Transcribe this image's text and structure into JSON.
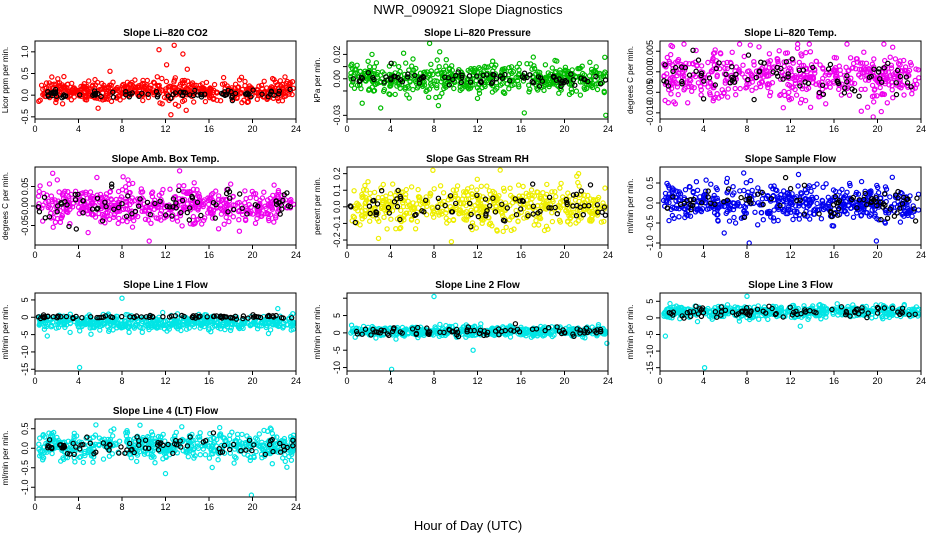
{
  "figure": {
    "title": "NWR_090921  Slope Diagnostics",
    "xlabel": "Hour of Day (UTC)"
  },
  "chart_data": [
    {
      "type": "scatter",
      "title": "Slope Li–820 CO2",
      "ylabel": "Licor ppm per min.",
      "xlim": [
        0,
        24
      ],
      "x_ticks": [
        0,
        4,
        8,
        12,
        16,
        20,
        24
      ],
      "ylim": [
        -0.55,
        1.25
      ],
      "y_ticks": [
        -0.5,
        0.0,
        0.5,
        1.0
      ],
      "y_tick_labels": [
        "-0.5",
        "0.0",
        "0.5",
        "1.0"
      ],
      "series": [
        {
          "color": "#ff0000",
          "center": 0.1,
          "spread": 0.12,
          "count": 520,
          "outliers": [
            [
              12.8,
              1.15
            ],
            [
              11.4,
              1.05
            ],
            [
              13.6,
              0.95
            ],
            [
              12.5,
              -0.45
            ],
            [
              13.2,
              -0.25
            ],
            [
              14.0,
              0.6
            ],
            [
              12.1,
              0.7
            ],
            [
              11.7,
              -0.2
            ],
            [
              13.9,
              -0.35
            ],
            [
              12.9,
              0.4
            ],
            [
              6.9,
              0.55
            ],
            [
              5.8,
              -0.3
            ]
          ]
        },
        {
          "color": "#000000",
          "center": 0.02,
          "spread": 0.05,
          "count": 85,
          "outliers": []
        }
      ]
    },
    {
      "type": "scatter",
      "title": "Slope Li–820 Pressure",
      "ylabel": "kPa per min.",
      "xlim": [
        0,
        24
      ],
      "x_ticks": [
        0,
        4,
        8,
        12,
        16,
        20,
        24
      ],
      "ylim": [
        -0.033,
        0.031
      ],
      "y_ticks": [
        -0.03,
        -0.01,
        0.0,
        0.01,
        0.02
      ],
      "y_tick_labels": [
        "-0.03",
        "",
        "0.00",
        "",
        "0.02"
      ],
      "series": [
        {
          "color": "#00bb00",
          "center": 0.0,
          "spread": 0.006,
          "count": 520,
          "outliers": [
            [
              7.6,
              0.029
            ],
            [
              16.3,
              -0.028
            ],
            [
              2.3,
              0.02
            ],
            [
              3.1,
              -0.024
            ],
            [
              23.8,
              -0.03
            ],
            [
              5.2,
              0.021
            ],
            [
              1.4,
              -0.02
            ],
            [
              8.4,
              -0.022
            ]
          ]
        },
        {
          "color": "#000000",
          "center": 0.0,
          "spread": 0.003,
          "count": 85,
          "outliers": []
        }
      ]
    },
    {
      "type": "scatter",
      "title": "Slope Li–820 Temp.",
      "ylabel": "degrees C per min.",
      "xlim": [
        0,
        24
      ],
      "x_ticks": [
        0,
        4,
        8,
        12,
        16,
        20,
        24
      ],
      "ylim": [
        -0.0115,
        0.0075
      ],
      "y_ticks": [
        -0.01,
        -0.005,
        0.0,
        0.005
      ],
      "y_tick_labels": [
        "-0.010",
        "-0.005",
        "0.000",
        "0.005"
      ],
      "series": [
        {
          "color": "#ee00ee",
          "center": -0.001,
          "spread": 0.003,
          "count": 520,
          "outliers": [
            [
              19.6,
              -0.011
            ],
            [
              8.3,
              0.0065
            ],
            [
              21.4,
              0.006
            ]
          ]
        },
        {
          "color": "#000000",
          "center": -0.001,
          "spread": 0.0025,
          "count": 85,
          "outliers": []
        }
      ]
    },
    {
      "type": "scatter",
      "title": "Slope Amb. Box Temp.",
      "ylabel": "degrees C per min.",
      "xlim": [
        0,
        24
      ],
      "x_ticks": [
        0,
        4,
        8,
        12,
        16,
        20,
        24
      ],
      "ylim": [
        -0.1,
        0.1
      ],
      "y_ticks": [
        -0.05,
        0.0,
        0.05
      ],
      "y_tick_labels": [
        "-0.05",
        "0.00",
        "0.05"
      ],
      "series": [
        {
          "color": "#ee00ee",
          "center": 0.0,
          "spread": 0.025,
          "count": 520,
          "outliers": [
            [
              13.3,
              0.09
            ],
            [
              10.5,
              -0.09
            ],
            [
              8.1,
              0.075
            ]
          ]
        },
        {
          "color": "#000000",
          "center": 0.0,
          "spread": 0.02,
          "count": 85,
          "outliers": []
        }
      ]
    },
    {
      "type": "scatter",
      "title": "Slope Gas Stream RH",
      "ylabel": "percent per min.",
      "xlim": [
        0,
        24
      ],
      "x_ticks": [
        0,
        4,
        8,
        12,
        16,
        20,
        24
      ],
      "ylim": [
        -0.23,
        0.24
      ],
      "y_ticks": [
        -0.2,
        -0.1,
        0.0,
        0.1,
        0.2
      ],
      "y_tick_labels": [
        "-0.2",
        "-0.1",
        "0.0",
        "0.1",
        "0.2"
      ],
      "series": [
        {
          "color": "#eeee00",
          "center": 0.0,
          "spread": 0.06,
          "count": 520,
          "outliers": [
            [
              7.9,
              0.22
            ],
            [
              9.6,
              -0.21
            ],
            [
              21.3,
              0.2
            ],
            [
              2.9,
              -0.19
            ]
          ]
        },
        {
          "color": "#000000",
          "center": 0.0,
          "spread": 0.05,
          "count": 85,
          "outliers": []
        }
      ]
    },
    {
      "type": "scatter",
      "title": "Slope Sample Flow",
      "ylabel": "ml/min per min.",
      "xlim": [
        0,
        24
      ],
      "x_ticks": [
        0,
        4,
        8,
        12,
        16,
        20,
        24
      ],
      "ylim": [
        -1.05,
        0.9
      ],
      "y_ticks": [
        -1.0,
        -0.5,
        0.0,
        0.5
      ],
      "y_tick_labels": [
        "-1.0",
        "-0.5",
        "0.0",
        "0.5"
      ],
      "series": [
        {
          "color": "#0000ee",
          "center": 0.0,
          "spread": 0.22,
          "count": 520,
          "outliers": [
            [
              8.2,
              -1.0
            ],
            [
              19.9,
              -0.95
            ],
            [
              7.7,
              0.75
            ],
            [
              5.9,
              -0.75
            ]
          ]
        },
        {
          "color": "#000000",
          "center": 0.0,
          "spread": 0.2,
          "count": 85,
          "outliers": []
        }
      ]
    },
    {
      "type": "scatter",
      "title": "Slope Line 1 Flow",
      "ylabel": "ml/min per min.",
      "xlim": [
        0,
        24
      ],
      "x_ticks": [
        0,
        4,
        8,
        12,
        16,
        20,
        24
      ],
      "ylim": [
        -15.5,
        7
      ],
      "y_ticks": [
        -15,
        -10,
        -5,
        0,
        5
      ],
      "y_tick_labels": [
        "-15",
        "-10",
        "-5",
        "0",
        "5"
      ],
      "series": [
        {
          "color": "#00e5e5",
          "center": -1.6,
          "spread": 1.1,
          "count": 520,
          "outliers": [
            [
              8.0,
              5.5
            ],
            [
              4.1,
              -14.5
            ]
          ]
        },
        {
          "color": "#000000",
          "center": 0.1,
          "spread": 0.25,
          "count": 85,
          "outliers": []
        }
      ]
    },
    {
      "type": "scatter",
      "title": "Slope Line 2 Flow",
      "ylabel": "ml/min per min.",
      "xlim": [
        0,
        24
      ],
      "x_ticks": [
        0,
        4,
        8,
        12,
        16,
        20,
        24
      ],
      "ylim": [
        -11,
        11.5
      ],
      "y_ticks": [
        -10,
        -5,
        0,
        5,
        10
      ],
      "y_tick_labels": [
        "-10",
        "-5",
        "0",
        "5",
        ""
      ],
      "series": [
        {
          "color": "#00e5e5",
          "center": 0.4,
          "spread": 0.7,
          "count": 520,
          "outliers": [
            [
              8.0,
              10.5
            ],
            [
              4.1,
              -10.5
            ],
            [
              11.6,
              -5.0
            ],
            [
              12.3,
              2.6
            ],
            [
              23.9,
              -3.0
            ]
          ]
        },
        {
          "color": "#000000",
          "center": 0.4,
          "spread": 0.7,
          "count": 85,
          "outliers": []
        }
      ]
    },
    {
      "type": "scatter",
      "title": "Slope Line 3 Flow",
      "ylabel": "ml/min per min.",
      "xlim": [
        0,
        24
      ],
      "x_ticks": [
        0,
        4,
        8,
        12,
        16,
        20,
        24
      ],
      "ylim": [
        -16,
        7.5
      ],
      "y_ticks": [
        -15,
        -10,
        -5,
        0,
        5
      ],
      "y_tick_labels": [
        "-15",
        "-10",
        "-5",
        "0",
        "5"
      ],
      "series": [
        {
          "color": "#00e5e5",
          "center": 1.8,
          "spread": 0.9,
          "count": 520,
          "outliers": [
            [
              8.0,
              6.5
            ],
            [
              4.1,
              -15.0
            ],
            [
              0.5,
              -5.5
            ],
            [
              12.9,
              -2.5
            ]
          ]
        },
        {
          "color": "#000000",
          "center": 1.8,
          "spread": 0.7,
          "count": 85,
          "outliers": []
        }
      ]
    },
    {
      "type": "scatter",
      "title": "Slope Line 4 (LT) Flow",
      "ylabel": "ml/min per min.",
      "xlim": [
        0,
        24
      ],
      "x_ticks": [
        0,
        4,
        8,
        12,
        16,
        20,
        24
      ],
      "ylim": [
        -1.25,
        0.75
      ],
      "y_ticks": [
        -1.0,
        -0.5,
        0.0,
        0.5
      ],
      "y_tick_labels": [
        "-1.0",
        "-0.5",
        "0.0",
        "0.5"
      ],
      "series": [
        {
          "color": "#00e5e5",
          "center": 0.05,
          "spread": 0.18,
          "count": 520,
          "outliers": [
            [
              19.9,
              -1.2
            ],
            [
              12.0,
              -0.65
            ],
            [
              5.6,
              0.6
            ],
            [
              13.5,
              0.55
            ]
          ]
        },
        {
          "color": "#000000",
          "center": 0.05,
          "spread": 0.15,
          "count": 85,
          "outliers": []
        }
      ]
    }
  ]
}
